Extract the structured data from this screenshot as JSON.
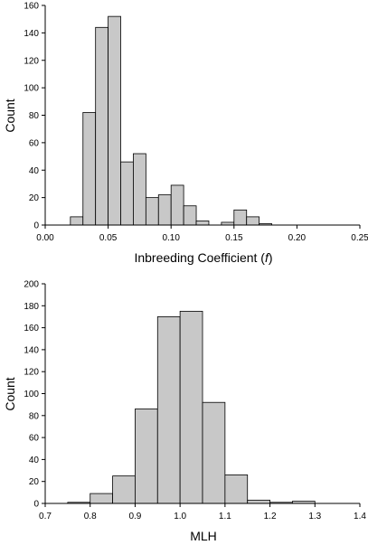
{
  "chart_data": [
    {
      "type": "bar",
      "xlabel_main": "Inbreeding Coefficient (",
      "xlabel_italic": "f",
      "xlabel_tail": ")",
      "ylabel": "Count",
      "xlim": [
        0.0,
        0.25
      ],
      "ylim": [
        0,
        160
      ],
      "x_ticks": [
        "0.00",
        "0.05",
        "0.10",
        "0.15",
        "0.20",
        "0.25"
      ],
      "y_ticks": [
        "0",
        "20",
        "40",
        "60",
        "80",
        "100",
        "120",
        "140",
        "160"
      ],
      "bin_width": 0.01,
      "bins": [
        {
          "x0": 0.02,
          "value": 6
        },
        {
          "x0": 0.03,
          "value": 82
        },
        {
          "x0": 0.04,
          "value": 144
        },
        {
          "x0": 0.05,
          "value": 152
        },
        {
          "x0": 0.06,
          "value": 46
        },
        {
          "x0": 0.07,
          "value": 52
        },
        {
          "x0": 0.08,
          "value": 20
        },
        {
          "x0": 0.09,
          "value": 22
        },
        {
          "x0": 0.1,
          "value": 29
        },
        {
          "x0": 0.11,
          "value": 14
        },
        {
          "x0": 0.12,
          "value": 3
        },
        {
          "x0": 0.13,
          "value": 0
        },
        {
          "x0": 0.14,
          "value": 2
        },
        {
          "x0": 0.15,
          "value": 11
        },
        {
          "x0": 0.16,
          "value": 6
        },
        {
          "x0": 0.17,
          "value": 1
        }
      ]
    },
    {
      "type": "bar",
      "xlabel": "MLH",
      "ylabel": "Count",
      "xlim": [
        0.7,
        1.4
      ],
      "ylim": [
        0,
        200
      ],
      "x_ticks": [
        "0.7",
        "0.8",
        "0.9",
        "1.0",
        "1.1",
        "1.2",
        "1.3",
        "1.4"
      ],
      "y_ticks": [
        "0",
        "20",
        "40",
        "60",
        "80",
        "100",
        "120",
        "140",
        "160",
        "180",
        "200"
      ],
      "bin_width": 0.05,
      "bins": [
        {
          "x0": 0.75,
          "value": 1
        },
        {
          "x0": 0.8,
          "value": 9
        },
        {
          "x0": 0.85,
          "value": 25
        },
        {
          "x0": 0.9,
          "value": 86
        },
        {
          "x0": 0.95,
          "value": 170
        },
        {
          "x0": 1.0,
          "value": 175
        },
        {
          "x0": 1.05,
          "value": 92
        },
        {
          "x0": 1.1,
          "value": 26
        },
        {
          "x0": 1.15,
          "value": 3
        },
        {
          "x0": 1.2,
          "value": 1
        },
        {
          "x0": 1.25,
          "value": 2
        }
      ]
    }
  ]
}
